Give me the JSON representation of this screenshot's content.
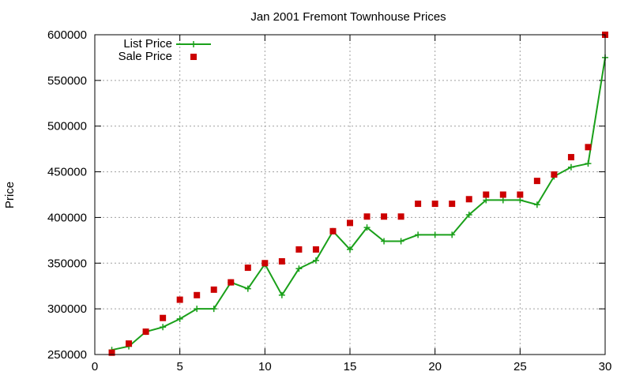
{
  "chart_data": {
    "type": "line",
    "title": "Jan 2001 Fremont Townhouse Prices",
    "xlabel": "",
    "ylabel": "Price",
    "xlim": [
      0,
      30
    ],
    "ylim": [
      250000,
      600000
    ],
    "xticks": [
      "0",
      "5",
      "10",
      "15",
      "20",
      "25",
      "30"
    ],
    "xtick_values": [
      0,
      5,
      10,
      15,
      20,
      25,
      30
    ],
    "yticks": [
      "250000",
      "300000",
      "350000",
      "400000",
      "450000",
      "500000",
      "550000",
      "600000"
    ],
    "ytick_values": [
      250000,
      300000,
      350000,
      400000,
      450000,
      500000,
      550000,
      600000
    ],
    "grid": true,
    "legend_position": "top-left",
    "series": [
      {
        "name": "List Price",
        "style": "line-with-plus-markers",
        "color": "#1aa01a",
        "x": [
          1,
          2,
          3,
          4,
          5,
          6,
          7,
          8,
          9,
          10,
          11,
          12,
          13,
          14,
          15,
          16,
          17,
          18,
          19,
          20,
          21,
          22,
          23,
          24,
          25,
          26,
          27,
          28,
          29,
          30
        ],
        "values": [
          255000,
          259000,
          275000,
          280000,
          289000,
          300000,
          300000,
          329000,
          322000,
          349000,
          315000,
          344000,
          353000,
          385000,
          365000,
          389000,
          374000,
          374000,
          381000,
          381000,
          381000,
          403000,
          419000,
          419000,
          419000,
          414000,
          445000,
          455000,
          459000,
          575000
        ]
      },
      {
        "name": "Sale Price",
        "style": "square-markers",
        "color": "#cc0000",
        "x": [
          1,
          2,
          3,
          4,
          5,
          6,
          7,
          8,
          9,
          10,
          11,
          12,
          13,
          14,
          15,
          16,
          17,
          18,
          19,
          20,
          21,
          22,
          23,
          24,
          25,
          26,
          27,
          28,
          29,
          30
        ],
        "values": [
          252000,
          262000,
          275000,
          290000,
          310000,
          315000,
          321000,
          329000,
          345000,
          350000,
          352000,
          365000,
          365000,
          385000,
          394000,
          401000,
          401000,
          401000,
          415000,
          415000,
          415000,
          420000,
          425000,
          425000,
          425000,
          440000,
          447000,
          466000,
          477000,
          600000
        ]
      }
    ]
  }
}
